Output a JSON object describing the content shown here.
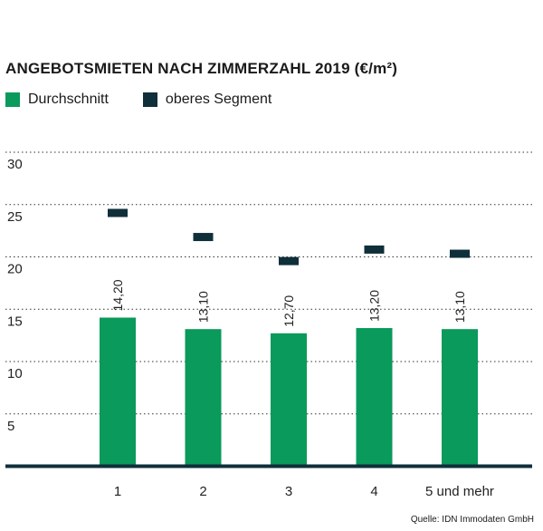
{
  "title": "ANGEBOTSMIETEN NACH ZIMMERZAHL 2019 (€/m²)",
  "legend": [
    {
      "label": "Durchschnitt",
      "color": "#0a9a5b"
    },
    {
      "label": "oberes Segment",
      "color": "#0f2f3a"
    }
  ],
  "source": "Quelle: IDN Immodaten GmbH",
  "chart_data": {
    "type": "bar",
    "categories": [
      "1",
      "2",
      "3",
      "4",
      "5 und mehr"
    ],
    "series": [
      {
        "name": "Durchschnitt",
        "values": [
          14.2,
          13.1,
          12.7,
          13.2,
          13.1
        ],
        "labels": [
          "14,20",
          "13,10",
          "12,70",
          "13,20",
          "13,10"
        ],
        "color": "#0a9a5b"
      },
      {
        "name": "oberes Segment",
        "values": [
          24.2,
          21.9,
          19.6,
          20.7,
          20.3
        ],
        "color": "#0f2f3a"
      }
    ],
    "ylim": [
      0,
      30
    ],
    "yticks": [
      5,
      10,
      15,
      20,
      25,
      30
    ],
    "grid": true,
    "legend_position": "top-left"
  }
}
